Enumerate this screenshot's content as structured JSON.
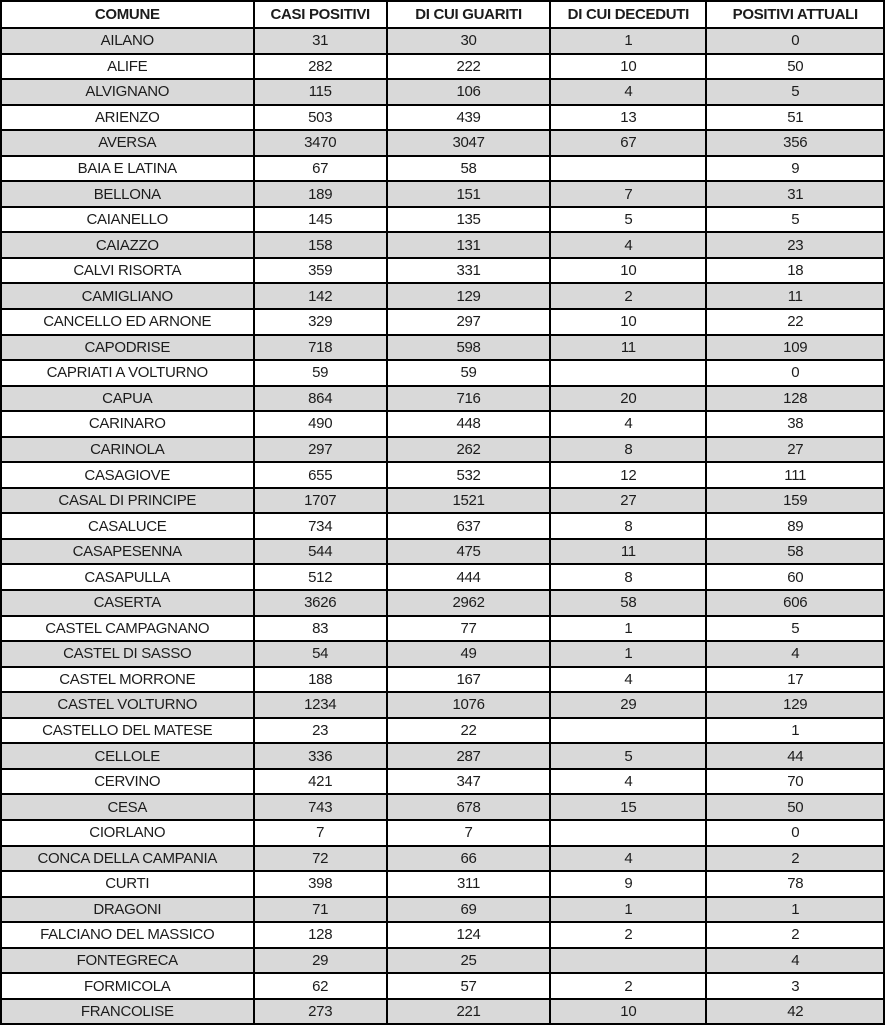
{
  "chart_data": {
    "type": "table",
    "columns": [
      "COMUNE",
      "CASI POSITIVI",
      "DI CUI GUARITI",
      "DI CUI DECEDUTI",
      "POSITIVI ATTUALI"
    ],
    "rows": [
      [
        "AILANO",
        "31",
        "30",
        "1",
        "0"
      ],
      [
        "ALIFE",
        "282",
        "222",
        "10",
        "50"
      ],
      [
        "ALVIGNANO",
        "115",
        "106",
        "4",
        "5"
      ],
      [
        "ARIENZO",
        "503",
        "439",
        "13",
        "51"
      ],
      [
        "AVERSA",
        "3470",
        "3047",
        "67",
        "356"
      ],
      [
        "BAIA E LATINA",
        "67",
        "58",
        "",
        "9"
      ],
      [
        "BELLONA",
        "189",
        "151",
        "7",
        "31"
      ],
      [
        "CAIANELLO",
        "145",
        "135",
        "5",
        "5"
      ],
      [
        "CAIAZZO",
        "158",
        "131",
        "4",
        "23"
      ],
      [
        "CALVI RISORTA",
        "359",
        "331",
        "10",
        "18"
      ],
      [
        "CAMIGLIANO",
        "142",
        "129",
        "2",
        "11"
      ],
      [
        "CANCELLO ED ARNONE",
        "329",
        "297",
        "10",
        "22"
      ],
      [
        "CAPODRISE",
        "718",
        "598",
        "11",
        "109"
      ],
      [
        "CAPRIATI A VOLTURNO",
        "59",
        "59",
        "",
        "0"
      ],
      [
        "CAPUA",
        "864",
        "716",
        "20",
        "128"
      ],
      [
        "CARINARO",
        "490",
        "448",
        "4",
        "38"
      ],
      [
        "CARINOLA",
        "297",
        "262",
        "8",
        "27"
      ],
      [
        "CASAGIOVE",
        "655",
        "532",
        "12",
        "111"
      ],
      [
        "CASAL DI PRINCIPE",
        "1707",
        "1521",
        "27",
        "159"
      ],
      [
        "CASALUCE",
        "734",
        "637",
        "8",
        "89"
      ],
      [
        "CASAPESENNA",
        "544",
        "475",
        "11",
        "58"
      ],
      [
        "CASAPULLA",
        "512",
        "444",
        "8",
        "60"
      ],
      [
        "CASERTA",
        "3626",
        "2962",
        "58",
        "606"
      ],
      [
        "CASTEL CAMPAGNANO",
        "83",
        "77",
        "1",
        "5"
      ],
      [
        "CASTEL DI SASSO",
        "54",
        "49",
        "1",
        "4"
      ],
      [
        "CASTEL MORRONE",
        "188",
        "167",
        "4",
        "17"
      ],
      [
        "CASTEL VOLTURNO",
        "1234",
        "1076",
        "29",
        "129"
      ],
      [
        "CASTELLO DEL MATESE",
        "23",
        "22",
        "",
        "1"
      ],
      [
        "CELLOLE",
        "336",
        "287",
        "5",
        "44"
      ],
      [
        "CERVINO",
        "421",
        "347",
        "4",
        "70"
      ],
      [
        "CESA",
        "743",
        "678",
        "15",
        "50"
      ],
      [
        "CIORLANO",
        "7",
        "7",
        "",
        "0"
      ],
      [
        "CONCA DELLA CAMPANIA",
        "72",
        "66",
        "4",
        "2"
      ],
      [
        "CURTI",
        "398",
        "311",
        "9",
        "78"
      ],
      [
        "DRAGONI",
        "71",
        "69",
        "1",
        "1"
      ],
      [
        "FALCIANO DEL MASSICO",
        "128",
        "124",
        "2",
        "2"
      ],
      [
        "FONTEGRECA",
        "29",
        "25",
        "",
        "4"
      ],
      [
        "FORMICOLA",
        "62",
        "57",
        "2",
        "3"
      ],
      [
        "FRANCOLISE",
        "273",
        "221",
        "10",
        "42"
      ]
    ]
  },
  "colors": {
    "stripe_row_background": "#d9d9d9",
    "plain_row_background": "#ffffff",
    "border": "#000000",
    "text": "#1c1c1c"
  }
}
